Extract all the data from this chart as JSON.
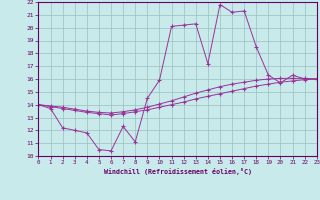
{
  "xlabel": "Windchill (Refroidissement éolien,°C)",
  "xlim": [
    0,
    23
  ],
  "ylim": [
    10,
    22
  ],
  "xticks": [
    0,
    1,
    2,
    3,
    4,
    5,
    6,
    7,
    8,
    9,
    10,
    11,
    12,
    13,
    14,
    15,
    16,
    17,
    18,
    19,
    20,
    21,
    22,
    23
  ],
  "yticks": [
    10,
    11,
    12,
    13,
    14,
    15,
    16,
    17,
    18,
    19,
    20,
    21,
    22
  ],
  "bg_color": "#c8eaea",
  "line_color": "#993399",
  "grid_color": "#9bbfbf",
  "line1_x": [
    0,
    1,
    2,
    3,
    4,
    5,
    6,
    7,
    8,
    9,
    10,
    11,
    12,
    13,
    14,
    15,
    16,
    17,
    18,
    19,
    20,
    21,
    22,
    23
  ],
  "line1_y": [
    14.0,
    13.7,
    12.2,
    12.0,
    11.8,
    10.5,
    10.4,
    12.3,
    11.1,
    14.5,
    15.9,
    20.1,
    20.2,
    20.3,
    17.2,
    21.8,
    21.2,
    21.3,
    18.5,
    16.3,
    15.7,
    16.3,
    16.0,
    16.0
  ],
  "line2_x": [
    0,
    1,
    2,
    3,
    4,
    5,
    6,
    7,
    8,
    9,
    10,
    11,
    12,
    13,
    14,
    15,
    16,
    17,
    18,
    19,
    20,
    21,
    22,
    23
  ],
  "line2_y": [
    14.0,
    13.85,
    13.7,
    13.55,
    13.4,
    13.3,
    13.2,
    13.3,
    13.45,
    13.6,
    13.8,
    14.0,
    14.2,
    14.45,
    14.65,
    14.85,
    15.05,
    15.25,
    15.45,
    15.6,
    15.75,
    15.85,
    15.95,
    16.0
  ],
  "line3_x": [
    0,
    1,
    2,
    3,
    4,
    5,
    6,
    7,
    8,
    9,
    10,
    11,
    12,
    13,
    14,
    15,
    16,
    17,
    18,
    19,
    20,
    21,
    22,
    23
  ],
  "line3_y": [
    14.0,
    13.9,
    13.8,
    13.65,
    13.5,
    13.4,
    13.35,
    13.45,
    13.6,
    13.8,
    14.05,
    14.3,
    14.6,
    14.9,
    15.15,
    15.4,
    15.6,
    15.75,
    15.9,
    16.0,
    16.05,
    16.05,
    16.05,
    16.0
  ]
}
